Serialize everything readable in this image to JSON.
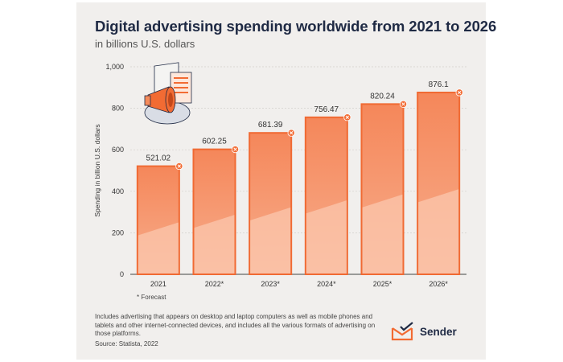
{
  "header": {
    "title": "Digital advertising spending worldwide from 2021 to 2026",
    "subtitle": "in billions U.S. dollars"
  },
  "chart_data": {
    "type": "bar",
    "categories": [
      "2021",
      "2022*",
      "2023*",
      "2024*",
      "2025*",
      "2026*"
    ],
    "values": [
      521.02,
      602.25,
      681.39,
      756.47,
      820.24,
      876.1
    ],
    "value_labels": [
      "521.02",
      "602.25",
      "681.39",
      "756.47",
      "820.24",
      "876.1"
    ],
    "ylabel": "Spending in billion U.S. dollars",
    "yticks": [
      0,
      200,
      400,
      600,
      800,
      1000
    ],
    "ytick_labels": [
      "0",
      "200",
      "400",
      "600",
      "800",
      "1,000"
    ],
    "ylim": [
      0,
      1000
    ],
    "grid": true,
    "bar_color": "#f58a5a",
    "bar_edge_color": "#f06a33"
  },
  "footnote": "* Forecast",
  "description": "Includes advertising that appears on desktop and laptop computers as well as mobile phones and tablets and other internet-connected devices, and includes all the various formats of advertising on those platforms.",
  "source": "Source: Statista, 2022",
  "brand": {
    "name": "Sender",
    "logo_icon": "envelope-check-icon",
    "accent_color": "#f26b33"
  }
}
